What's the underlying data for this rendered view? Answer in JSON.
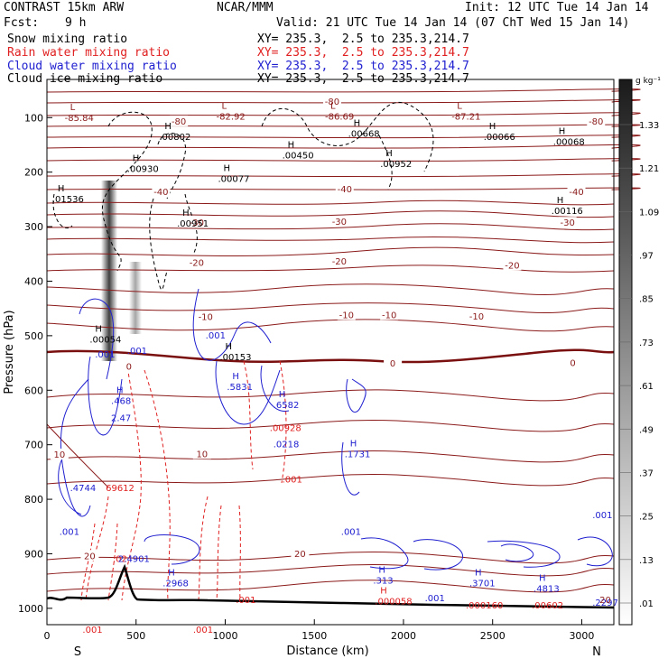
{
  "header": {
    "model": "CONTRAST 15km ARW",
    "center": "NCAR/MMM",
    "init": "Init: 12 UTC Tue 14 Jan 14",
    "fcst_label": "Fcst:",
    "fcst_value": "9 h",
    "valid": "Valid: 21 UTC Tue 14 Jan 14 (07 ChT Wed 15 Jan 14)",
    "fields": [
      {
        "name": "Snow mixing ratio",
        "xy": "XY= 235.3,  2.5 to 235.3,214.7",
        "color": "#000000"
      },
      {
        "name": "Rain water mixing ratio",
        "xy": "XY= 235.3,  2.5 to 235.3,214.7",
        "color": "#e02020"
      },
      {
        "name": "Cloud water mixing ratio",
        "xy": "XY= 235.3,  2.5 to 235.3,214.7",
        "color": "#2020d0"
      },
      {
        "name": "Cloud ice mixing ratio",
        "xy": "XY= 235.3,  2.5 to 235.3,214.7",
        "color": "#000000"
      }
    ]
  },
  "chart_data": {
    "type": "contour",
    "ylabel": "Pressure (hPa)",
    "xlabel": "Distance (km)",
    "x_ticks": [
      0,
      500,
      1000,
      1500,
      2000,
      2500,
      3000
    ],
    "y_ticks": [
      100,
      200,
      300,
      400,
      500,
      600,
      700,
      800,
      900,
      1000
    ],
    "xlim": [
      0,
      3180
    ],
    "ylim": [
      1030,
      30
    ],
    "x_end_labels": {
      "left": "S",
      "right": "N"
    },
    "colorbar": {
      "unit": "g kg⁻¹",
      "labels": [
        "1.33",
        "1.21",
        "1.09",
        ".97",
        ".85",
        ".73",
        ".61",
        ".49",
        ".37",
        ".25",
        ".13",
        ".01"
      ]
    },
    "temperature_labels": [
      {
        "x": 1600,
        "p": 70,
        "text": "-80"
      },
      {
        "x": 740,
        "p": 106,
        "text": "-80"
      },
      {
        "x": 3080,
        "p": 106,
        "text": "-80"
      },
      {
        "x": 1670,
        "p": 230,
        "text": "-40"
      },
      {
        "x": 640,
        "p": 235,
        "text": "-40"
      },
      {
        "x": 2970,
        "p": 235,
        "text": "-40"
      },
      {
        "x": 1640,
        "p": 290,
        "text": "-30"
      },
      {
        "x": 840,
        "p": 292,
        "text": "-30"
      },
      {
        "x": 2920,
        "p": 292,
        "text": "-30"
      },
      {
        "x": 1640,
        "p": 363,
        "text": "-20"
      },
      {
        "x": 840,
        "p": 365,
        "text": "-20"
      },
      {
        "x": 2610,
        "p": 370,
        "text": "-20"
      },
      {
        "x": 1680,
        "p": 461,
        "text": "-10"
      },
      {
        "x": 1920,
        "p": 461,
        "text": "-10"
      },
      {
        "x": 2410,
        "p": 464,
        "text": "-10"
      },
      {
        "x": 890,
        "p": 465,
        "text": "-10"
      },
      {
        "x": 1940,
        "p": 550,
        "text": "0"
      },
      {
        "x": 2950,
        "p": 549,
        "text": "0"
      },
      {
        "x": 460,
        "p": 556,
        "text": "0"
      },
      {
        "x": 870,
        "p": 716,
        "text": "10"
      },
      {
        "x": 70,
        "p": 717,
        "text": "10"
      },
      {
        "x": 1420,
        "p": 899,
        "text": "20"
      },
      {
        "x": 240,
        "p": 903,
        "text": "20"
      }
    ],
    "extrema": [
      {
        "x": 130,
        "p": 91,
        "t": "L",
        "v": "-85.84",
        "color": "#8b1a1a"
      },
      {
        "x": 980,
        "p": 89,
        "t": "L",
        "v": "-82.92",
        "color": "#8b1a1a"
      },
      {
        "x": 1590,
        "p": 89,
        "t": "L",
        "v": "-86.69",
        "color": "#8b1a1a"
      },
      {
        "x": 2300,
        "p": 89,
        "t": "L",
        "v": "-87.21",
        "color": "#8b1a1a"
      },
      {
        "x": 660,
        "p": 126,
        "t": "H",
        "v": ".00802",
        "color": "#000000"
      },
      {
        "x": 1720,
        "p": 120,
        "t": "H",
        "v": ".00668",
        "color": "#000000"
      },
      {
        "x": 2480,
        "p": 126,
        "t": "H",
        "v": ".00066",
        "color": "#000000"
      },
      {
        "x": 2870,
        "p": 135,
        "t": "H",
        "v": ".00068",
        "color": "#000000"
      },
      {
        "x": 1350,
        "p": 160,
        "t": "H",
        "v": ".00450",
        "color": "#000000"
      },
      {
        "x": 1900,
        "p": 176,
        "t": "H",
        "v": ".00952",
        "color": "#000000"
      },
      {
        "x": 480,
        "p": 185,
        "t": "H",
        "v": ".00930",
        "color": "#000000"
      },
      {
        "x": 990,
        "p": 203,
        "t": "H",
        "v": ".00077",
        "color": "#000000"
      },
      {
        "x": 60,
        "p": 240,
        "t": "H",
        "v": ".01536",
        "color": "#000000"
      },
      {
        "x": 2860,
        "p": 262,
        "t": "H",
        "v": ".00116",
        "color": "#000000"
      },
      {
        "x": 760,
        "p": 285,
        "t": "H",
        "v": ".00951",
        "color": "#000000"
      },
      {
        "x": 270,
        "p": 498,
        "t": "H",
        "v": ".00054",
        "color": "#000000"
      },
      {
        "x": 1000,
        "p": 530,
        "t": "H",
        "v": ".00153",
        "color": "#000000"
      },
      {
        "x": 300,
        "p": 525,
        "t": "",
        "v": ".001",
        "color": "#2020d0"
      },
      {
        "x": 480,
        "p": 518,
        "t": "",
        "v": ".001",
        "color": "#2020d0"
      },
      {
        "x": 920,
        "p": 490,
        "t": "",
        "v": ".001",
        "color": "#2020d0"
      },
      {
        "x": 1040,
        "p": 585,
        "t": "H",
        "v": ".5831",
        "color": "#2020d0"
      },
      {
        "x": 390,
        "p": 610,
        "t": "H",
        "v": ".468",
        "color": "#2020d0"
      },
      {
        "x": 1300,
        "p": 618,
        "t": "H",
        "v": ".6582",
        "color": "#2020d0"
      },
      {
        "x": 390,
        "p": 642,
        "t": "",
        "v": "2.47",
        "color": "#2020d0"
      },
      {
        "x": 1280,
        "p": 660,
        "t": "",
        "v": ".00928",
        "color": "#e02020"
      },
      {
        "x": 1300,
        "p": 690,
        "t": "",
        "v": ".0218",
        "color": "#2020d0"
      },
      {
        "x": 1700,
        "p": 708,
        "t": "H",
        "v": ".1731",
        "color": "#2020d0"
      },
      {
        "x": 1350,
        "p": 754,
        "t": "",
        "v": ".001",
        "color": "#e02020"
      },
      {
        "x": 160,
        "p": 770,
        "t": "",
        "v": ".4744",
        "color": "#2020d0"
      },
      {
        "x": 360,
        "p": 770,
        "t": "",
        "v": "69612",
        "color": "#e02020"
      },
      {
        "x": 100,
        "p": 850,
        "t": "",
        "v": ".001",
        "color": "#2020d0"
      },
      {
        "x": 1680,
        "p": 850,
        "t": "",
        "v": ".001",
        "color": "#2020d0"
      },
      {
        "x": 3090,
        "p": 820,
        "t": "",
        "v": ".001",
        "color": "#2020d0"
      },
      {
        "x": 400,
        "p": 900,
        "t": "",
        "v": ".02",
        "color": "#e02020"
      },
      {
        "x": 430,
        "p": 900,
        "t": "",
        "v": "2.4901",
        "color": "#2020d0"
      },
      {
        "x": 680,
        "p": 945,
        "t": "H",
        "v": ".2968",
        "color": "#2020d0"
      },
      {
        "x": 1090,
        "p": 975,
        "t": "",
        "v": ".001",
        "color": "#e02020"
      },
      {
        "x": 1860,
        "p": 940,
        "t": "H",
        "v": ".313",
        "color": "#2020d0"
      },
      {
        "x": 1870,
        "p": 978,
        "t": "H",
        "v": ".000058",
        "color": "#e02020"
      },
      {
        "x": 2150,
        "p": 972,
        "t": "",
        "v": ".001",
        "color": "#2020d0"
      },
      {
        "x": 2400,
        "p": 945,
        "t": "H",
        "v": ".3701",
        "color": "#2020d0"
      },
      {
        "x": 2380,
        "p": 985,
        "t": "",
        "v": ".000160",
        "color": "#e02020"
      },
      {
        "x": 2760,
        "p": 955,
        "t": "H",
        "v": ".4813",
        "color": "#2020d0"
      },
      {
        "x": 2750,
        "p": 985,
        "t": "",
        "v": ".00602",
        "color": "#e02020"
      },
      {
        "x": 3090,
        "p": 980,
        "t": "",
        "v": ".2297",
        "color": "#2020d0"
      },
      {
        "x": 3130,
        "p": 975,
        "t": "",
        "v": "20",
        "color": "#8b1a1a"
      },
      {
        "x": 230,
        "p": 1030,
        "t": "",
        "v": ".001",
        "color": "#e02020"
      },
      {
        "x": 850,
        "p": 1030,
        "t": "",
        "v": ".001",
        "color": "#e02020"
      }
    ]
  }
}
